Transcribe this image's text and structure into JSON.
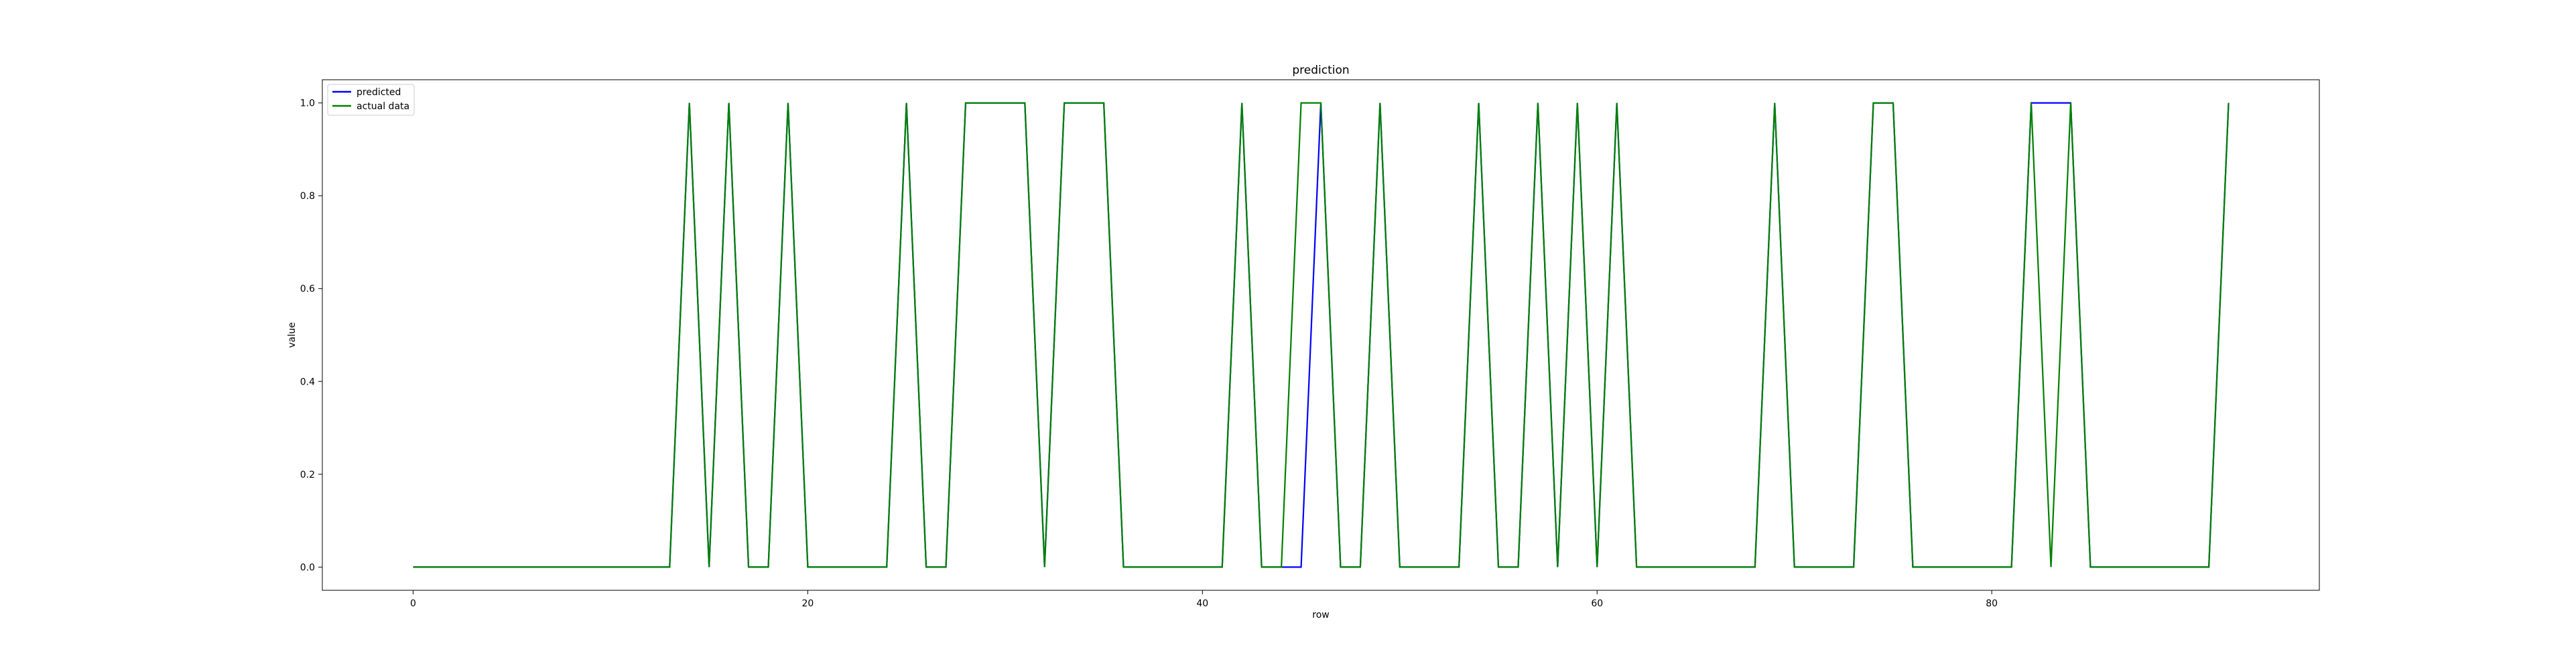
{
  "chart_data": {
    "type": "line",
    "title": "prediction",
    "xlabel": "row",
    "ylabel": "value",
    "xlim": [
      -4.6,
      96.6
    ],
    "ylim": [
      -0.05,
      1.05
    ],
    "xticks": [
      0,
      20,
      40,
      60,
      80
    ],
    "yticks": [
      0.0,
      0.2,
      0.4,
      0.6,
      0.8,
      1.0
    ],
    "ytick_labels": [
      "0.0",
      "0.2",
      "0.4",
      "0.6",
      "0.8",
      "1.0"
    ],
    "grid": false,
    "legend_position": "upper-left",
    "x": [
      0,
      1,
      2,
      3,
      4,
      5,
      6,
      7,
      8,
      9,
      10,
      11,
      12,
      13,
      14,
      15,
      16,
      17,
      18,
      19,
      20,
      21,
      22,
      23,
      24,
      25,
      26,
      27,
      28,
      29,
      30,
      31,
      32,
      33,
      34,
      35,
      36,
      37,
      38,
      39,
      40,
      41,
      42,
      43,
      44,
      45,
      46,
      47,
      48,
      49,
      50,
      51,
      52,
      53,
      54,
      55,
      56,
      57,
      58,
      59,
      60,
      61,
      62,
      63,
      64,
      65,
      66,
      67,
      68,
      69,
      70,
      71,
      72,
      73,
      74,
      75,
      76,
      77,
      78,
      79,
      80,
      81,
      82,
      83,
      84,
      85,
      86,
      87,
      88,
      89,
      90,
      91,
      92
    ],
    "series": [
      {
        "name": "predicted",
        "color": "#0000ff",
        "values": [
          0,
          0,
          0,
          0,
          0,
          0,
          0,
          0,
          0,
          0,
          0,
          0,
          0,
          0,
          1,
          0,
          1,
          0,
          0,
          1,
          0,
          0,
          0,
          0,
          0,
          1,
          0,
          0,
          1,
          1,
          1,
          1,
          0,
          1,
          1,
          1,
          0,
          0,
          0,
          0,
          0,
          0,
          1,
          0,
          0,
          0,
          1,
          0,
          0,
          1,
          0,
          0,
          0,
          0,
          1,
          0,
          0,
          1,
          0,
          1,
          0,
          1,
          0,
          0,
          0,
          0,
          0,
          0,
          0,
          1,
          0,
          0,
          0,
          0,
          1,
          1,
          0,
          0,
          0,
          0,
          0,
          0,
          1,
          1,
          1,
          0,
          0,
          0,
          0,
          0,
          0,
          0,
          1
        ]
      },
      {
        "name": "actual data",
        "color": "#008000",
        "values": [
          0,
          0,
          0,
          0,
          0,
          0,
          0,
          0,
          0,
          0,
          0,
          0,
          0,
          0,
          1,
          0,
          1,
          0,
          0,
          1,
          0,
          0,
          0,
          0,
          0,
          1,
          0,
          0,
          1,
          1,
          1,
          1,
          0,
          1,
          1,
          1,
          0,
          0,
          0,
          0,
          0,
          0,
          1,
          0,
          0,
          1,
          1,
          0,
          0,
          1,
          0,
          0,
          0,
          0,
          1,
          0,
          0,
          1,
          0,
          1,
          0,
          1,
          0,
          0,
          0,
          0,
          0,
          0,
          0,
          1,
          0,
          0,
          0,
          0,
          1,
          1,
          0,
          0,
          0,
          0,
          0,
          0,
          1,
          0,
          1,
          0,
          0,
          0,
          0,
          0,
          0,
          0,
          1
        ]
      }
    ]
  }
}
